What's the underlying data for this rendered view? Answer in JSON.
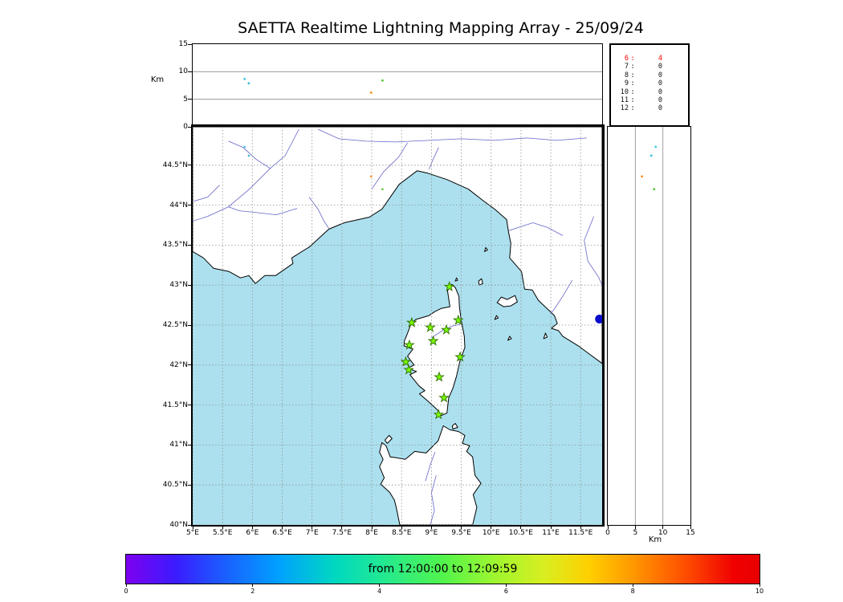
{
  "title": "SAETTA Realtime Lightning Mapping Array - 25/09/24",
  "altitude_axis": {
    "label": "Km",
    "range": [
      0,
      15
    ],
    "ticks": [
      0,
      5,
      10,
      15
    ],
    "gridlines": [
      5,
      10
    ]
  },
  "station_count_panel": {
    "rows": [
      {
        "label": "6",
        "value": "4",
        "highlight": true
      },
      {
        "label": "7",
        "value": "0",
        "highlight": false
      },
      {
        "label": "8",
        "value": "0",
        "highlight": false
      },
      {
        "label": "9",
        "value": "0",
        "highlight": false
      },
      {
        "label": "10",
        "value": "0",
        "highlight": false
      },
      {
        "label": "11",
        "value": "0",
        "highlight": false
      },
      {
        "label": "12",
        "value": "0",
        "highlight": false
      }
    ],
    "highlight_color": "#ff0000",
    "text_color": "#111111"
  },
  "map": {
    "lon_range": [
      5.0,
      11.86
    ],
    "lat_range": [
      40.0,
      44.98
    ],
    "lon_ticks": [
      {
        "v": 5,
        "label": "5°E"
      },
      {
        "v": 5.5,
        "label": "5.5°E"
      },
      {
        "v": 6,
        "label": "6°E"
      },
      {
        "v": 6.5,
        "label": "6.5°E"
      },
      {
        "v": 7,
        "label": "7°E"
      },
      {
        "v": 7.5,
        "label": "7.5°E"
      },
      {
        "v": 8,
        "label": "8°E"
      },
      {
        "v": 8.5,
        "label": "8.5°E"
      },
      {
        "v": 9,
        "label": "9°E"
      },
      {
        "v": 9.5,
        "label": "9.5°E"
      },
      {
        "v": 10,
        "label": "10°E"
      },
      {
        "v": 10.5,
        "label": "10.5°E"
      },
      {
        "v": 11,
        "label": "11°E"
      },
      {
        "v": 11.5,
        "label": "11.5°E"
      }
    ],
    "lat_ticks": [
      {
        "v": 44.5,
        "label": "44.5°N"
      },
      {
        "v": 44,
        "label": "44°N"
      },
      {
        "v": 43.5,
        "label": "43.5°N"
      },
      {
        "v": 43,
        "label": "43°N"
      },
      {
        "v": 42.5,
        "label": "42.5°N"
      },
      {
        "v": 42,
        "label": "42°N"
      },
      {
        "v": 41.5,
        "label": "41.5°N"
      },
      {
        "v": 41,
        "label": "41°N"
      },
      {
        "v": 40.5,
        "label": "40.5°N"
      },
      {
        "v": 40,
        "label": "40°N"
      }
    ],
    "sea_color": "#ace0ee",
    "land_color": "#ffffff",
    "coast_color": "#000000",
    "river_color": "#6464c8",
    "grid_color": "#909090",
    "station_color": "#7CFC00",
    "station_edge_color": "#2d7000",
    "lake_color": "#0a0acc"
  },
  "chart_data": {
    "type": "map+scatter",
    "description": "Lightning Mapping Array realtime composite: altitude-vs-longitude panel (top), lat/lon map with LMA station stars (center), altitude-vs-latitude panel (right), sources-per-station-count table, time colorbar.",
    "stations": [
      {
        "lon": 9.3,
        "lat": 42.98
      },
      {
        "lon": 8.67,
        "lat": 42.53
      },
      {
        "lon": 8.98,
        "lat": 42.47
      },
      {
        "lon": 9.25,
        "lat": 42.44
      },
      {
        "lon": 9.45,
        "lat": 42.56
      },
      {
        "lon": 9.03,
        "lat": 42.3
      },
      {
        "lon": 8.63,
        "lat": 42.25
      },
      {
        "lon": 8.57,
        "lat": 42.04
      },
      {
        "lon": 9.48,
        "lat": 42.1
      },
      {
        "lon": 8.62,
        "lat": 41.94
      },
      {
        "lon": 9.13,
        "lat": 41.85
      },
      {
        "lon": 9.21,
        "lat": 41.59
      },
      {
        "lon": 9.12,
        "lat": 41.38
      }
    ],
    "sources": [
      {
        "lon": 5.87,
        "lat": 44.73,
        "alt_km": 8.7,
        "color": "#3ec8e0"
      },
      {
        "lon": 5.94,
        "lat": 44.62,
        "alt_km": 7.9,
        "color": "#38bcd8"
      },
      {
        "lon": 7.99,
        "lat": 44.36,
        "alt_km": 6.2,
        "color": "#ff8c1a"
      },
      {
        "lon": 8.18,
        "lat": 44.2,
        "alt_km": 8.4,
        "color": "#58c832"
      }
    ],
    "lakes": [
      {
        "lon": 11.815,
        "lat": 42.575,
        "r": 5.5
      }
    ],
    "coastlines": {
      "mainland": [
        [
          5.0,
          43.42
        ],
        [
          5.18,
          43.34
        ],
        [
          5.35,
          43.21
        ],
        [
          5.61,
          43.17
        ],
        [
          5.8,
          43.09
        ],
        [
          5.94,
          43.12
        ],
        [
          6.05,
          43.02
        ],
        [
          6.21,
          43.12
        ],
        [
          6.39,
          43.12
        ],
        [
          6.68,
          43.27
        ],
        [
          6.66,
          43.34
        ],
        [
          6.96,
          43.48
        ],
        [
          7.28,
          43.7
        ],
        [
          7.54,
          43.78
        ],
        [
          7.96,
          43.85
        ],
        [
          8.17,
          43.95
        ],
        [
          8.46,
          44.26
        ],
        [
          8.76,
          44.43
        ],
        [
          8.94,
          44.4
        ],
        [
          9.26,
          44.32
        ],
        [
          9.62,
          44.2
        ],
        [
          9.86,
          44.06
        ],
        [
          10.06,
          43.95
        ],
        [
          10.26,
          43.82
        ],
        [
          10.29,
          43.67
        ],
        [
          10.33,
          43.52
        ],
        [
          10.31,
          43.34
        ],
        [
          10.51,
          43.17
        ],
        [
          10.56,
          42.95
        ],
        [
          10.69,
          42.94
        ],
        [
          10.79,
          42.81
        ],
        [
          11.06,
          42.62
        ],
        [
          11.11,
          42.52
        ],
        [
          11.01,
          42.46
        ],
        [
          11.13,
          42.43
        ],
        [
          11.2,
          42.36
        ],
        [
          11.46,
          42.24
        ],
        [
          11.66,
          42.13
        ],
        [
          11.86,
          42.02
        ],
        [
          11.86,
          44.98
        ],
        [
          5.0,
          44.98
        ]
      ],
      "corsica": [
        [
          9.34,
          43.01
        ],
        [
          9.27,
          42.93
        ],
        [
          9.31,
          42.73
        ],
        [
          9.17,
          42.71
        ],
        [
          9.06,
          42.67
        ],
        [
          8.96,
          42.62
        ],
        [
          8.74,
          42.57
        ],
        [
          8.66,
          42.52
        ],
        [
          8.59,
          42.38
        ],
        [
          8.55,
          42.31
        ],
        [
          8.54,
          42.24
        ],
        [
          8.69,
          42.2
        ],
        [
          8.6,
          42.11
        ],
        [
          8.71,
          42.0
        ],
        [
          8.6,
          41.96
        ],
        [
          8.75,
          41.92
        ],
        [
          8.64,
          41.88
        ],
        [
          8.79,
          41.74
        ],
        [
          8.89,
          41.68
        ],
        [
          8.8,
          41.64
        ],
        [
          8.94,
          41.55
        ],
        [
          9.1,
          41.44
        ],
        [
          9.17,
          41.37
        ],
        [
          9.26,
          41.4
        ],
        [
          9.29,
          41.59
        ],
        [
          9.36,
          41.71
        ],
        [
          9.42,
          41.86
        ],
        [
          9.48,
          42.06
        ],
        [
          9.56,
          42.22
        ],
        [
          9.55,
          42.36
        ],
        [
          9.5,
          42.56
        ],
        [
          9.47,
          42.72
        ],
        [
          9.46,
          42.86
        ],
        [
          9.4,
          42.97
        ]
      ],
      "sardinia": [
        [
          8.47,
          40.0
        ],
        [
          8.41,
          40.22
        ],
        [
          8.38,
          40.31
        ],
        [
          8.3,
          40.41
        ],
        [
          8.15,
          40.51
        ],
        [
          8.21,
          40.59
        ],
        [
          8.13,
          40.73
        ],
        [
          8.19,
          40.82
        ],
        [
          8.13,
          40.91
        ],
        [
          8.17,
          41.03
        ],
        [
          8.24,
          40.99
        ],
        [
          8.31,
          40.85
        ],
        [
          8.41,
          40.84
        ],
        [
          8.56,
          40.82
        ],
        [
          8.72,
          40.92
        ],
        [
          8.91,
          40.9
        ],
        [
          9.11,
          41.05
        ],
        [
          9.2,
          41.24
        ],
        [
          9.31,
          41.19
        ],
        [
          9.45,
          41.17
        ],
        [
          9.56,
          41.12
        ],
        [
          9.52,
          41.02
        ],
        [
          9.64,
          40.99
        ],
        [
          9.59,
          40.92
        ],
        [
          9.69,
          40.85
        ],
        [
          9.73,
          40.62
        ],
        [
          9.83,
          40.52
        ],
        [
          9.7,
          40.38
        ],
        [
          9.76,
          40.22
        ],
        [
          9.69,
          40.0
        ]
      ],
      "islands": [
        [
          [
            10.1,
            42.78
          ],
          [
            10.21,
            42.73
          ],
          [
            10.33,
            42.74
          ],
          [
            10.44,
            42.79
          ],
          [
            10.4,
            42.87
          ],
          [
            10.27,
            42.82
          ],
          [
            10.17,
            42.85
          ]
        ],
        [
          [
            9.8,
            43.0
          ],
          [
            9.86,
            43.02
          ],
          [
            9.84,
            43.08
          ],
          [
            9.79,
            43.05
          ]
        ],
        [
          [
            8.26,
            41.02
          ],
          [
            8.34,
            41.08
          ],
          [
            8.29,
            41.12
          ],
          [
            8.22,
            41.06
          ]
        ],
        [
          [
            9.36,
            41.2
          ],
          [
            9.44,
            41.22
          ],
          [
            9.4,
            41.27
          ],
          [
            9.35,
            41.24
          ]
        ],
        [
          [
            10.06,
            42.57
          ],
          [
            10.12,
            42.59
          ],
          [
            10.09,
            42.62
          ]
        ],
        [
          [
            10.28,
            42.31
          ],
          [
            10.34,
            42.33
          ],
          [
            10.31,
            42.36
          ]
        ],
        [
          [
            10.88,
            42.33
          ],
          [
            10.94,
            42.35
          ],
          [
            10.91,
            42.4
          ]
        ],
        [
          [
            9.89,
            43.42
          ],
          [
            9.94,
            43.44
          ],
          [
            9.91,
            43.47
          ]
        ],
        [
          [
            9.4,
            43.05
          ],
          [
            9.44,
            43.06
          ],
          [
            9.42,
            43.09
          ]
        ]
      ]
    },
    "rivers": [
      [
        [
          6.78,
          44.95
        ],
        [
          6.55,
          44.62
        ],
        [
          6.3,
          44.46
        ],
        [
          5.95,
          44.2
        ],
        [
          5.6,
          43.98
        ],
        [
          5.25,
          43.86
        ],
        [
          5.0,
          43.8
        ]
      ],
      [
        [
          6.75,
          43.96
        ],
        [
          6.4,
          43.88
        ],
        [
          6.05,
          43.91
        ],
        [
          5.78,
          43.93
        ],
        [
          5.6,
          43.98
        ]
      ],
      [
        [
          6.3,
          44.46
        ],
        [
          6.05,
          44.58
        ],
        [
          5.85,
          44.72
        ],
        [
          5.6,
          44.8
        ]
      ],
      [
        [
          5.45,
          44.25
        ],
        [
          5.25,
          44.1
        ],
        [
          5.02,
          44.05
        ]
      ],
      [
        [
          6.95,
          44.1
        ],
        [
          7.1,
          43.95
        ],
        [
          7.2,
          43.8
        ],
        [
          7.28,
          43.71
        ]
      ],
      [
        [
          7.1,
          44.95
        ],
        [
          7.45,
          44.83
        ],
        [
          7.9,
          44.8
        ],
        [
          8.4,
          44.79
        ],
        [
          8.95,
          44.81
        ],
        [
          9.5,
          44.83
        ],
        [
          10.05,
          44.81
        ],
        [
          10.6,
          44.84
        ],
        [
          11.1,
          44.81
        ],
        [
          11.6,
          44.84
        ]
      ],
      [
        [
          8.0,
          44.2
        ],
        [
          8.2,
          44.42
        ],
        [
          8.45,
          44.6
        ],
        [
          8.6,
          44.78
        ]
      ],
      [
        [
          9.12,
          44.72
        ],
        [
          9.02,
          44.56
        ],
        [
          8.96,
          44.45
        ]
      ],
      [
        [
          11.2,
          43.62
        ],
        [
          10.95,
          43.72
        ],
        [
          10.7,
          43.78
        ],
        [
          10.45,
          43.72
        ],
        [
          10.29,
          43.68
        ]
      ],
      [
        [
          11.72,
          43.86
        ],
        [
          11.56,
          43.56
        ],
        [
          11.62,
          43.3
        ],
        [
          11.8,
          43.1
        ],
        [
          11.86,
          43.0
        ]
      ],
      [
        [
          11.36,
          43.06
        ],
        [
          11.2,
          42.86
        ],
        [
          11.06,
          42.7
        ],
        [
          10.99,
          42.64
        ]
      ],
      [
        [
          9.0,
          42.34
        ],
        [
          9.2,
          42.44
        ],
        [
          9.36,
          42.49
        ],
        [
          9.48,
          42.51
        ]
      ],
      [
        [
          8.9,
          40.55
        ],
        [
          8.98,
          40.75
        ],
        [
          9.06,
          40.91
        ]
      ],
      [
        [
          9.08,
          40.62
        ],
        [
          9.0,
          40.4
        ],
        [
          9.05,
          40.18
        ],
        [
          8.98,
          40.0
        ]
      ]
    ]
  },
  "colorbar": {
    "label": "from 12:00:00 to 12:09:59",
    "range": [
      0,
      10
    ],
    "tick_values": [
      0,
      2,
      4,
      6,
      8,
      10
    ],
    "tick_labels": [
      "0",
      "2",
      "4",
      "6",
      "8",
      "10"
    ],
    "stops": [
      {
        "c": "#7d00f0",
        "p": 0
      },
      {
        "c": "#3b1cff",
        "p": 8
      },
      {
        "c": "#2052ff",
        "p": 14
      },
      {
        "c": "#00a0ff",
        "p": 24
      },
      {
        "c": "#00d8c0",
        "p": 33
      },
      {
        "c": "#20e896",
        "p": 40
      },
      {
        "c": "#52f44c",
        "p": 50
      },
      {
        "c": "#9cf630",
        "p": 58
      },
      {
        "c": "#d8ee20",
        "p": 66
      },
      {
        "c": "#ffd000",
        "p": 73
      },
      {
        "c": "#ff9800",
        "p": 80
      },
      {
        "c": "#ff5000",
        "p": 88
      },
      {
        "c": "#f00000",
        "p": 96
      },
      {
        "c": "#e80000",
        "p": 100
      }
    ]
  }
}
